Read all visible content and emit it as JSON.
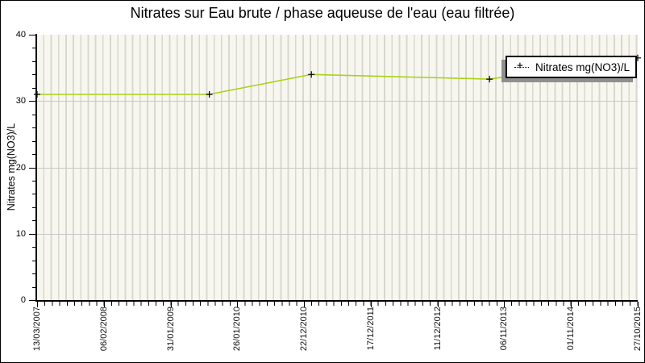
{
  "chart_data": {
    "type": "line",
    "title": "Nitrates sur Eau brute / phase aqueuse de l'eau (eau filtrée)",
    "ylabel": "Nitrates mg(NO3)/L",
    "xlabel": "",
    "ylim": [
      0,
      40
    ],
    "y_major_ticks": [
      0,
      10,
      20,
      30,
      40
    ],
    "y_minor_tick_step": 2,
    "y_gridlines": [
      10,
      20,
      30
    ],
    "x_tick_labels": [
      "13/03/2007",
      "06/02/2008",
      "31/01/2009",
      "26/01/2010",
      "22/12/2010",
      "17/12/2011",
      "11/12/2012",
      "06/11/2013",
      "01/11/2014",
      "27/10/2015"
    ],
    "grid": "vertical minor stripes + horizontal major gridlines",
    "legend": {
      "position": "top-right",
      "label": "Nitrates mg(NO3)/L",
      "marker_glyph": "+"
    },
    "series": [
      {
        "name": "Nitrates mg(NO3)/L",
        "color": "#a9d218",
        "marker": "plus",
        "marker_color": "#000000",
        "points": [
          {
            "x_tick_index": 0.0,
            "value": 31
          },
          {
            "x_tick_index": 2.58,
            "value": 31
          },
          {
            "x_tick_index": 4.11,
            "value": 34
          },
          {
            "x_tick_index": 6.78,
            "value": 33.3
          },
          {
            "x_tick_index": 9.0,
            "value": 36.5
          }
        ]
      }
    ],
    "colors": {
      "plot_fill": "#f7f7ef",
      "stripe": "#d8d8d0",
      "gridline": "#c8c8c8",
      "axis": "#000000",
      "legend_shadow": "#8f8f8f"
    }
  }
}
